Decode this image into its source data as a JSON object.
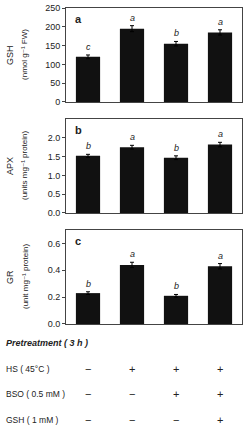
{
  "chart_data": [
    {
      "type": "bar",
      "title": "a",
      "ylabel": [
        "GSH",
        "(nmol g⁻¹ FW)"
      ],
      "categories": [
        null,
        null,
        null,
        null
      ],
      "values": [
        120,
        195,
        155,
        185
      ],
      "errors": [
        5,
        8,
        6,
        7
      ],
      "annotations": [
        "c",
        "a",
        "b",
        "a"
      ],
      "color": "#111111",
      "ylim": [
        0,
        250
      ],
      "yticks": [
        0,
        50,
        100,
        150,
        200,
        250
      ],
      "grid": false,
      "tick_labels": "y"
    },
    {
      "type": "bar",
      "title": "b",
      "ylabel": [
        "APX",
        "(units mg⁻¹ protein)"
      ],
      "categories": [
        null,
        null,
        null,
        null
      ],
      "values": [
        1.52,
        1.75,
        1.47,
        1.82
      ],
      "errors": [
        0.04,
        0.05,
        0.05,
        0.06
      ],
      "annotations": [
        "b",
        "a",
        "b",
        "a"
      ],
      "color": "#111111",
      "ylim": [
        0.0,
        2.5
      ],
      "yticks": [
        {
          "value": 0,
          "label": "0.0"
        },
        0.5,
        {
          "value": 1,
          "label": "1.0"
        },
        1.5,
        {
          "value": 2,
          "label": "2.0"
        }
      ],
      "grid": false,
      "tick_labels": "y"
    },
    {
      "type": "bar",
      "title": "c",
      "ylabel": [
        "GR",
        "(unit mg⁻¹ protein)"
      ],
      "categories": [
        null,
        null,
        null,
        null
      ],
      "values": [
        0.23,
        0.44,
        0.21,
        0.43
      ],
      "errors": [
        0.01,
        0.02,
        0.01,
        0.02
      ],
      "annotations": [
        "b",
        "a",
        "b",
        "a"
      ],
      "color": "#111111",
      "ylim": [
        0.0,
        0.7
      ],
      "yticks": [
        {
          "value": 0,
          "label": "0.0"
        },
        0.2,
        0.4,
        0.6
      ],
      "grid": false,
      "tick_labels": "y"
    }
  ],
  "table": {
    "title": "Pretreatment ( 3 h )",
    "rows": [
      {
        "label": "HS ( 45°C )",
        "values": [
          "−",
          "+",
          "+",
          "+"
        ]
      },
      {
        "label": "BSO ( 0.5 mM )",
        "values": [
          "−",
          "−",
          "+",
          "+"
        ]
      },
      {
        "label": "GSH ( 1 mM )",
        "values": [
          "−",
          "−",
          "−",
          "+"
        ]
      }
    ]
  }
}
